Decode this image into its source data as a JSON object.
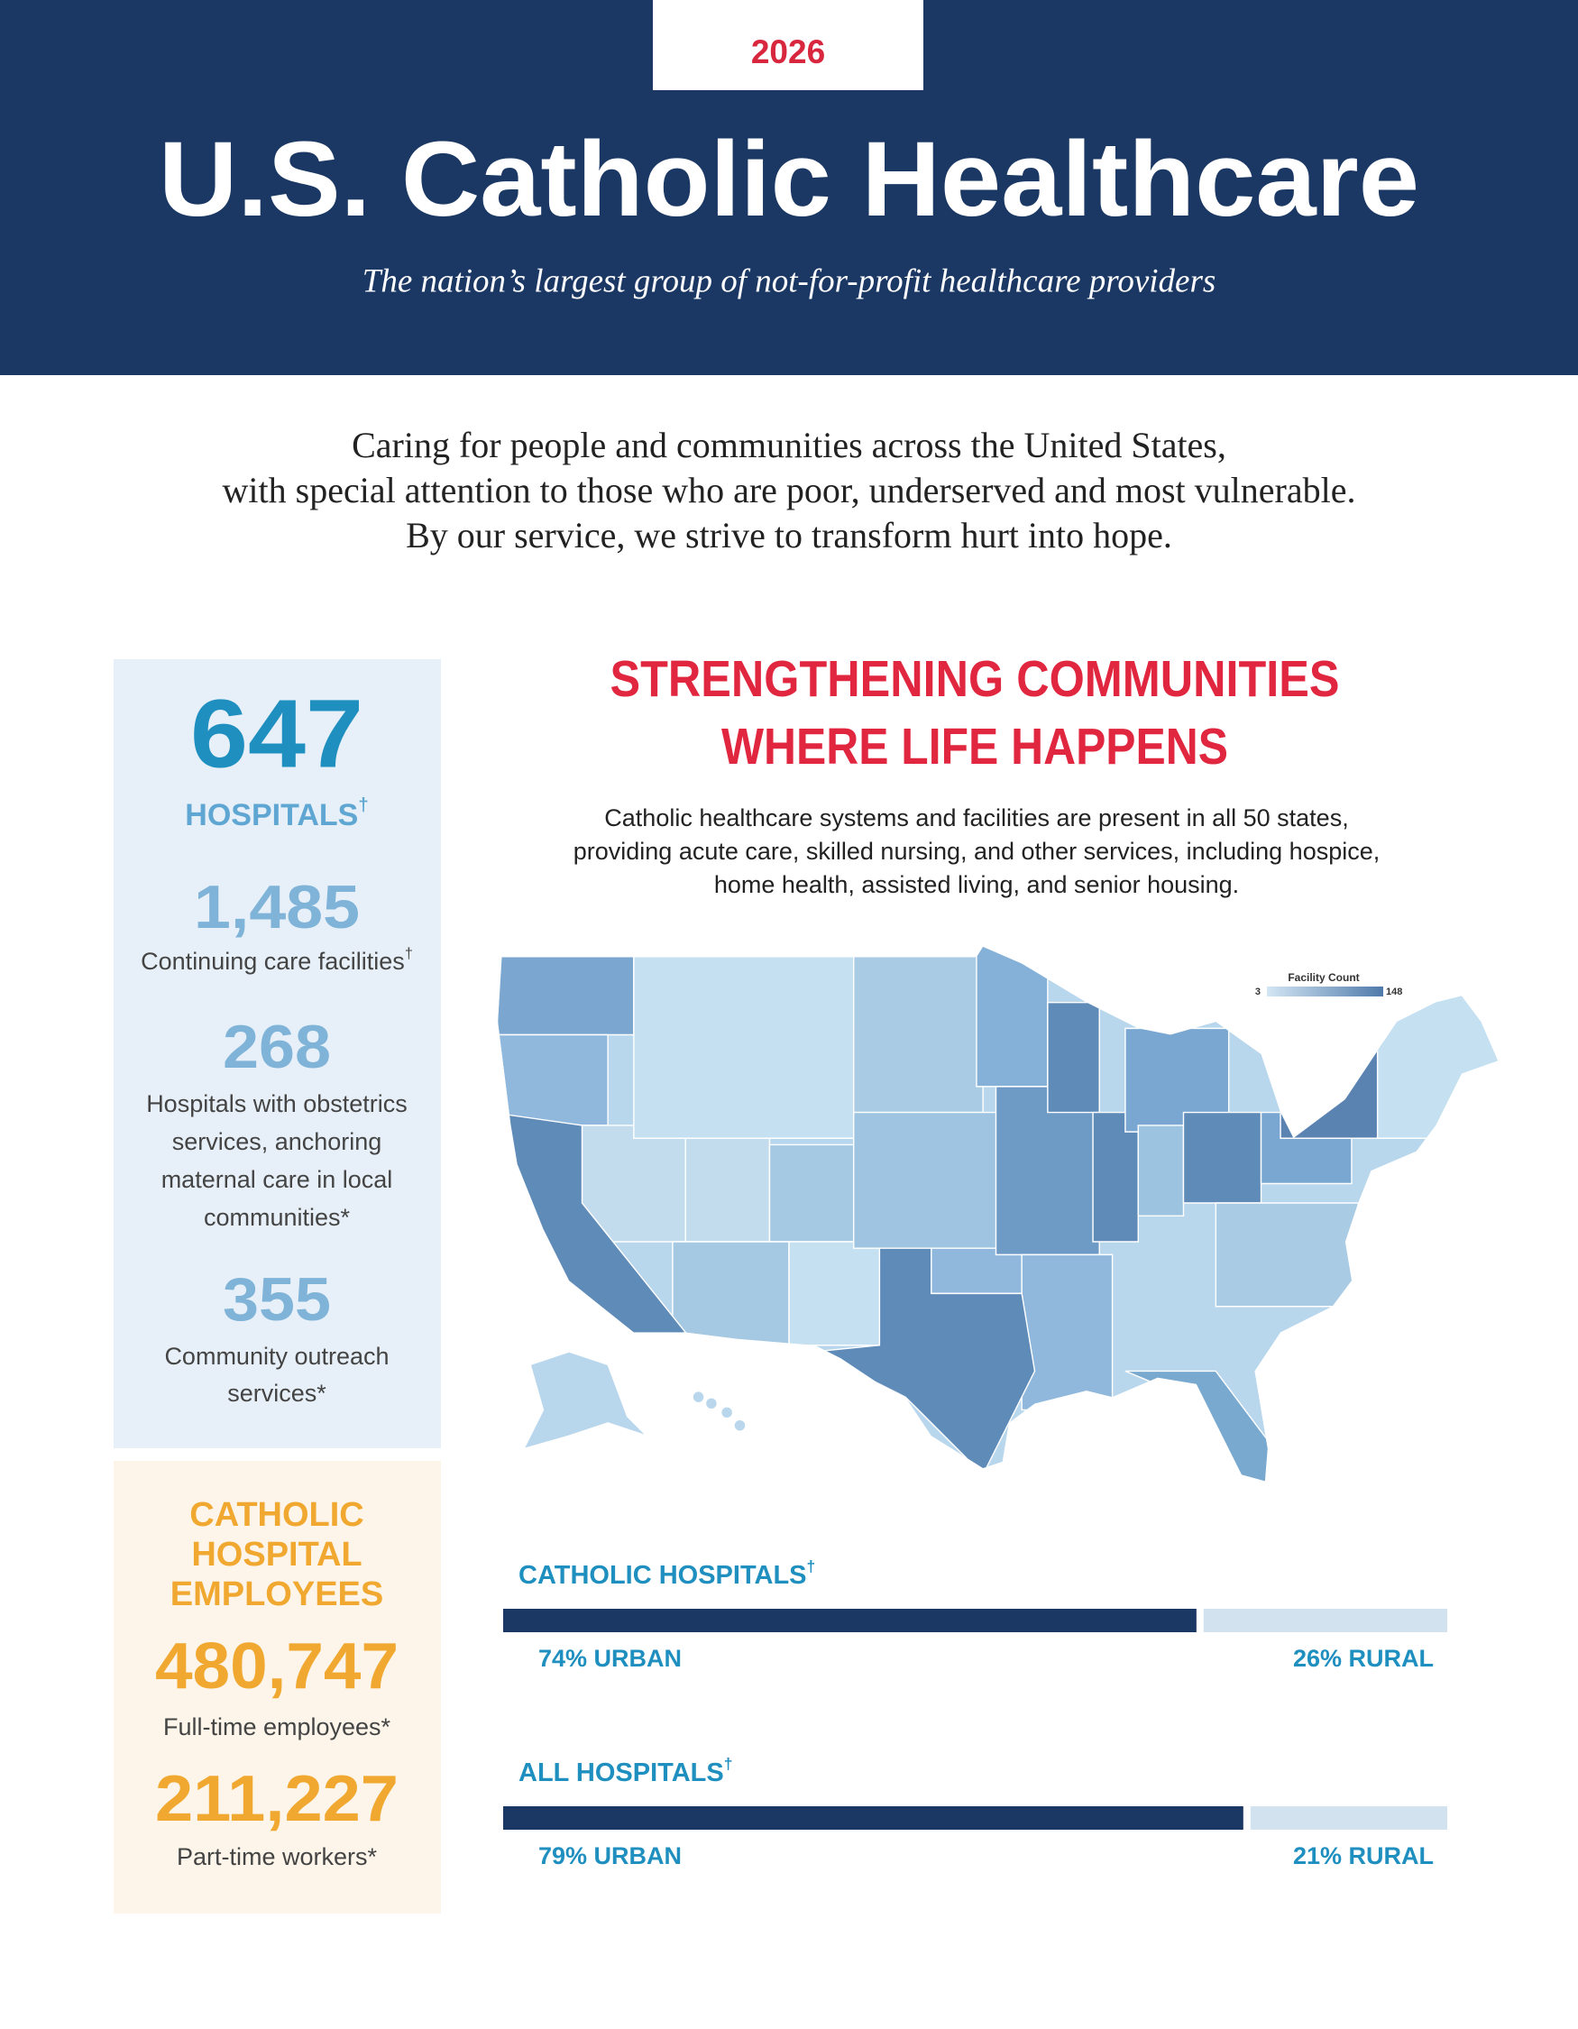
{
  "header": {
    "year": "2026",
    "title": "U.S. Catholic Healthcare",
    "subtitle": "The nation’s largest group of not-for-profit healthcare providers"
  },
  "intro": [
    "Caring for people and communities across the United States,",
    "with special attention to those who are poor, underserved and most vulnerable.",
    "By our service, we strive to transform hurt into hope."
  ],
  "stats": [
    {
      "number": "647",
      "label": [
        "HOSPITALS"
      ],
      "mark": "†"
    },
    {
      "number": "1,485",
      "label": [
        "Continuing care facilities"
      ],
      "mark": "†"
    },
    {
      "number": "268",
      "label": [
        "Hospitals with obstetrics",
        "services, anchoring",
        "maternal care in local",
        "communities*"
      ]
    },
    {
      "number": "355",
      "label": [
        "Community outreach",
        "services*"
      ]
    }
  ],
  "employees": {
    "heading": [
      "CATHOLIC",
      "HOSPITAL",
      "EMPLOYEES"
    ],
    "stats": [
      {
        "number": "480,747",
        "label": "Full-time employees*"
      },
      {
        "number": "211,227",
        "label": "Part-time workers*"
      }
    ]
  },
  "section": {
    "title": [
      "STRENGTHENING COMMUNITIES",
      "WHERE LIFE HAPPENS"
    ],
    "description": [
      "Catholic healthcare systems and facilities are present in all 50 states,",
      "providing acute care, skilled nursing, and other services, including hospice,",
      "home health, assisted living, and senior housing."
    ]
  },
  "map": {
    "legend_title": "Facility Count",
    "legend_min": 3,
    "legend_max": 148
  },
  "bars": [
    {
      "title": "CATHOLIC HOSPITALS",
      "mark": "†",
      "urban": {
        "value": 74,
        "label": "74% URBAN"
      },
      "rural": {
        "value": 26,
        "label": "26% RURAL"
      }
    },
    {
      "title": "ALL HOSPITALS",
      "mark": "†",
      "urban": {
        "value": 79,
        "label": "79% URBAN"
      },
      "rural": {
        "value": 21,
        "label": "21% RURAL"
      }
    }
  ]
}
